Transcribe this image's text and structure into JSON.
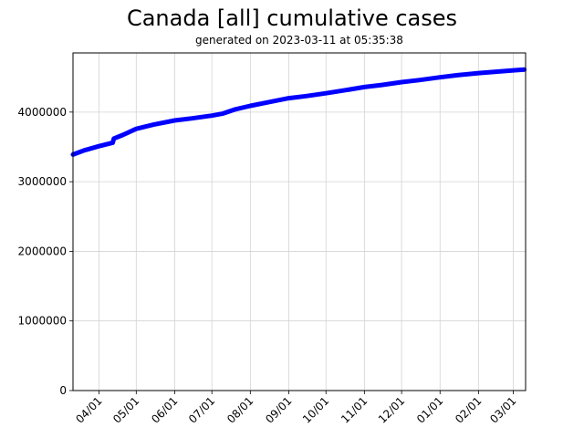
{
  "header": {
    "title": "Canada [all] cumulative cases",
    "subtitle": "generated on 2023-03-11 at 05:35:38"
  },
  "colors": {
    "line": "#0000ff",
    "grid": "#d3d3d3",
    "axis": "#000000"
  },
  "chart_data": {
    "type": "line",
    "title": "Canada [all] cumulative cases",
    "subtitle": "generated on 2023-03-11 at 05:35:38",
    "xlabel": "",
    "ylabel": "",
    "ylim": [
      0,
      4850000
    ],
    "grid": true,
    "legend": null,
    "x_tick_labels": [
      "04/01",
      "05/01",
      "06/01",
      "07/01",
      "08/01",
      "09/01",
      "10/01",
      "11/01",
      "12/01",
      "01/01",
      "02/01",
      "03/01"
    ],
    "y_tick_labels": [
      "0",
      "1000000",
      "2000000",
      "3000000",
      "4000000"
    ],
    "y_ticks": [
      0,
      1000000,
      2000000,
      3000000,
      4000000
    ],
    "series": [
      {
        "name": "cumulative cases",
        "x": [
          "2022-03-11",
          "2022-03-20",
          "2022-04-01",
          "2022-04-12",
          "2022-04-13",
          "2022-04-20",
          "2022-05-01",
          "2022-05-15",
          "2022-06-01",
          "2022-06-15",
          "2022-07-01",
          "2022-07-10",
          "2022-07-20",
          "2022-08-01",
          "2022-08-15",
          "2022-09-01",
          "2022-09-15",
          "2022-10-01",
          "2022-10-15",
          "2022-11-01",
          "2022-11-15",
          "2022-12-01",
          "2022-12-15",
          "2023-01-01",
          "2023-01-15",
          "2023-02-01",
          "2023-02-15",
          "2023-03-01",
          "2023-03-10"
        ],
        "values": [
          3390000,
          3450000,
          3510000,
          3560000,
          3620000,
          3670000,
          3760000,
          3820000,
          3880000,
          3910000,
          3950000,
          3980000,
          4040000,
          4090000,
          4140000,
          4200000,
          4230000,
          4270000,
          4310000,
          4360000,
          4390000,
          4430000,
          4460000,
          4500000,
          4530000,
          4560000,
          4580000,
          4600000,
          4610000
        ]
      }
    ]
  }
}
